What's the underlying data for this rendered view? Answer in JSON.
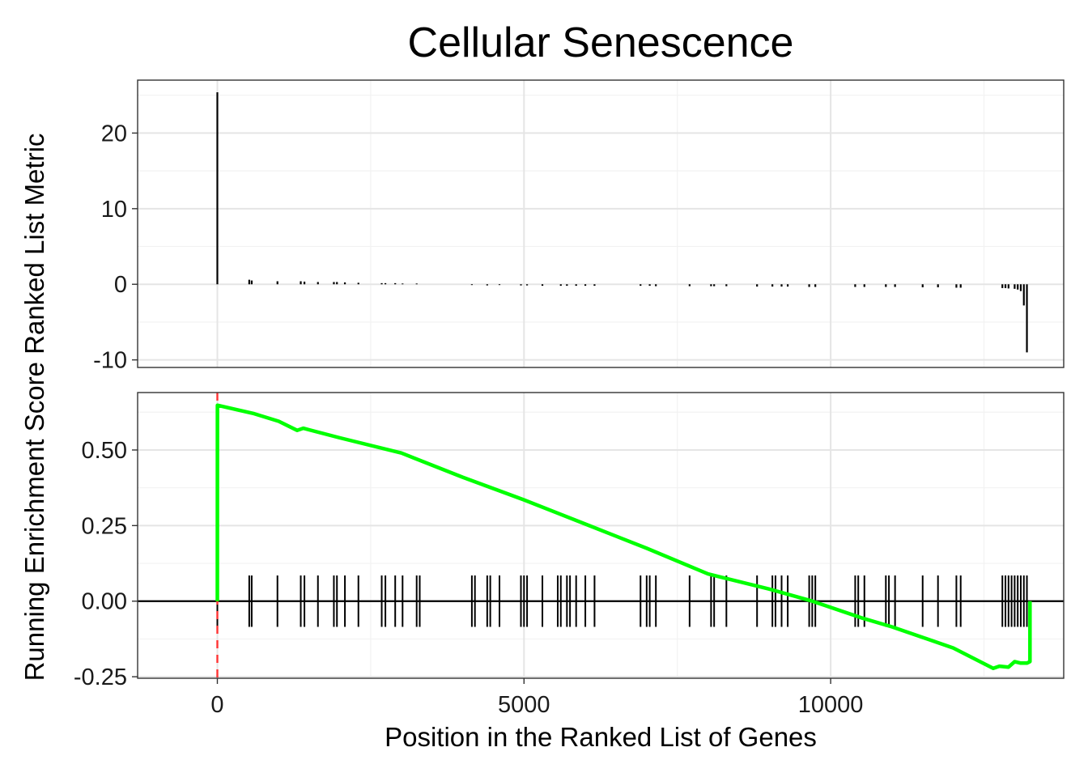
{
  "colors": {
    "enrichment_line": "#00ff00",
    "peak_line": "#ff3333",
    "bars": "#000000",
    "gene_ticks": "#000000"
  },
  "chart_data": {
    "type": "line",
    "title": "Cellular Senescence",
    "xlabel": "Position in the Ranked List of Genes",
    "ylabel": "Running Enrichment Score Ranked List Metric",
    "xlim": [
      -1300,
      13800
    ],
    "x_ticks": [
      "0",
      "5000",
      "10000"
    ],
    "x_tick_values": [
      0,
      5000,
      10000
    ],
    "grid": true,
    "panels": [
      {
        "name": "ranked-list-metric",
        "type": "bar",
        "ylim": [
          -11,
          27
        ],
        "y_ticks": [
          "20",
          "10",
          "0",
          "-10"
        ],
        "y_tick_values": [
          20,
          10,
          0,
          -10
        ],
        "bars": {
          "x": [
            0,
            520,
            560,
            980,
            1360,
            1420,
            1640,
            1900,
            1950,
            2080,
            2300,
            2680,
            2740,
            2900,
            3020,
            3250,
            4150,
            4400,
            4600,
            4950,
            5050,
            5300,
            5600,
            5700,
            5850,
            6000,
            6150,
            6900,
            7050,
            7150,
            7700,
            8050,
            8100,
            8300,
            8800,
            9050,
            9200,
            9300,
            9650,
            9750,
            10400,
            10550,
            10900,
            11050,
            11500,
            11750,
            12050,
            12120,
            12800,
            12850,
            12900,
            13000,
            13050,
            13100,
            13150,
            13200
          ],
          "values": [
            25.4,
            0.6,
            0.5,
            0.4,
            0.4,
            0.35,
            0.3,
            0.3,
            0.3,
            0.25,
            0.2,
            0.15,
            0.15,
            0.15,
            0.1,
            0.1,
            -0.1,
            -0.15,
            -0.1,
            -0.15,
            -0.15,
            -0.2,
            -0.2,
            -0.2,
            -0.2,
            -0.2,
            -0.2,
            -0.2,
            -0.2,
            -0.25,
            -0.25,
            -0.25,
            -0.25,
            -0.25,
            -0.3,
            -0.3,
            -0.3,
            -0.3,
            -0.35,
            -0.35,
            -0.35,
            -0.35,
            -0.35,
            -0.35,
            -0.4,
            -0.4,
            -0.45,
            -0.45,
            -0.5,
            -0.5,
            -0.55,
            -0.6,
            -0.7,
            -0.9,
            -2.8,
            -9.0
          ]
        }
      },
      {
        "name": "running-enrichment-score",
        "type": "line",
        "ylim": [
          -0.255,
          0.69
        ],
        "y_ticks": [
          "0.50",
          "0.25",
          "0.00",
          "-0.25"
        ],
        "y_tick_values": [
          0.5,
          0.25,
          0.0,
          -0.25
        ],
        "peak_x": 0,
        "series": [
          {
            "x": [
              0,
              1,
              600,
              1000,
              1300,
              1400,
              2000,
              3000,
              4000,
              5000,
              6000,
              7000,
              8000,
              9000,
              9700,
              10500,
              11000,
              12000,
              12650,
              12750,
              12900,
              13000,
              13100,
              13200,
              13250,
              13250
            ],
            "y": [
              0.0,
              0.648,
              0.62,
              0.595,
              0.565,
              0.572,
              0.54,
              0.49,
              0.41,
              0.335,
              0.255,
              0.175,
              0.09,
              0.04,
              0.0,
              -0.055,
              -0.085,
              -0.155,
              -0.222,
              -0.215,
              -0.218,
              -0.2,
              -0.205,
              -0.205,
              -0.2,
              0.0
            ]
          }
        ],
        "gene_hits_x": [
          0,
          520,
          560,
          980,
          1360,
          1420,
          1640,
          1900,
          1950,
          2080,
          2300,
          2680,
          2740,
          2900,
          3020,
          3250,
          3300,
          4150,
          4200,
          4400,
          4450,
          4600,
          4950,
          5000,
          5050,
          5300,
          5550,
          5600,
          5700,
          5750,
          5850,
          6000,
          6150,
          6900,
          7000,
          7050,
          7150,
          7700,
          8050,
          8100,
          8300,
          8800,
          9050,
          9100,
          9200,
          9300,
          9650,
          9700,
          9750,
          10400,
          10450,
          10550,
          10900,
          10950,
          11050,
          11500,
          11750,
          12050,
          12120,
          12800,
          12850,
          12900,
          12950,
          13000,
          13050,
          13100,
          13150,
          13200
        ]
      }
    ]
  }
}
